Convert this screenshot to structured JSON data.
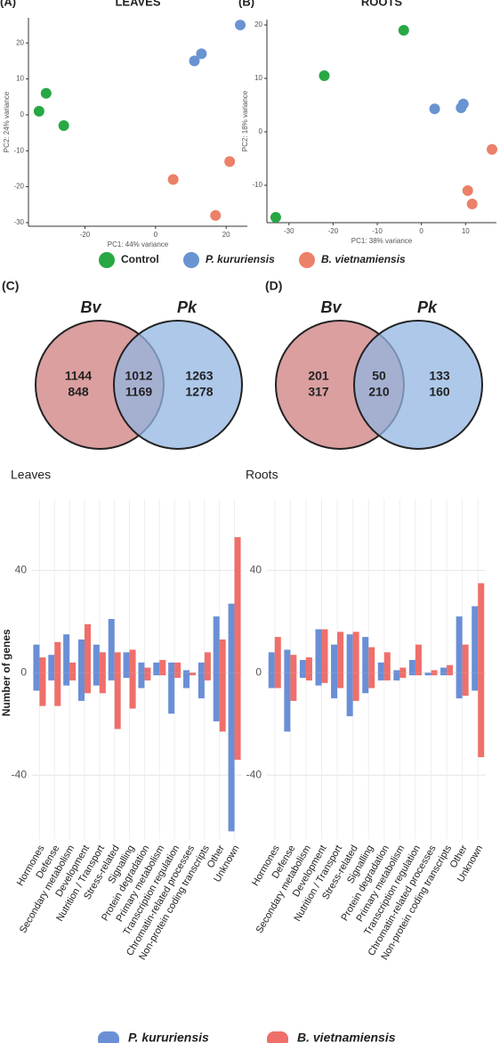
{
  "chart_data": [
    {
      "type": "scatter",
      "label": "(A)",
      "title": "LEAVES",
      "x_label": "PC1: 44% variance",
      "y_label": "PC2: 24% variance",
      "xlim": [
        -36,
        26
      ],
      "ylim": [
        -31,
        27
      ],
      "xticks": [
        -20,
        0,
        20
      ],
      "yticks": [
        -30,
        -20,
        -10,
        0,
        10,
        20
      ],
      "grid": false,
      "series": [
        {
          "name": "Control",
          "color": "#27a844",
          "x": [
            -33,
            -31,
            -26
          ],
          "y": [
            1,
            6,
            -3
          ]
        },
        {
          "name": "P. kururiensis",
          "color": "#6a93d2",
          "x": [
            11,
            13,
            24
          ],
          "y": [
            15,
            17,
            25
          ]
        },
        {
          "name": "B. vietnamiensis",
          "color": "#ec8068",
          "x": [
            5,
            17,
            21
          ],
          "y": [
            -18,
            -28,
            -13
          ]
        }
      ]
    },
    {
      "type": "scatter",
      "label": "(B)",
      "title": "ROOTS",
      "x_label": "PC1: 38% variance",
      "y_label": "PC2: 18% variance",
      "xlim": [
        -35,
        17
      ],
      "ylim": [
        -17,
        21
      ],
      "xticks": [
        -30,
        -20,
        -10,
        0,
        10
      ],
      "yticks": [
        -10,
        0,
        10,
        20
      ],
      "grid": false,
      "series": [
        {
          "name": "Control",
          "color": "#27a844",
          "x": [
            -33,
            -22,
            -4
          ],
          "y": [
            -16,
            10.5,
            19
          ]
        },
        {
          "name": "P. kururiensis",
          "color": "#6a93d2",
          "x": [
            3,
            9,
            9.5
          ],
          "y": [
            4.3,
            4.5,
            5.2
          ]
        },
        {
          "name": "B. vietnamiensis",
          "color": "#ec8068",
          "x": [
            10.5,
            11.5,
            16
          ],
          "y": [
            -11,
            -13.5,
            -3.3
          ]
        }
      ]
    },
    {
      "type": "venn",
      "label": "(C)",
      "sets": [
        {
          "name": "Bv",
          "color": "#cf7f80"
        },
        {
          "name": "Pk",
          "color": "#93b6e2"
        }
      ],
      "left_only": [
        1144,
        848
      ],
      "both": [
        1012,
        1169
      ],
      "right_only": [
        1263,
        1278
      ]
    },
    {
      "type": "venn",
      "label": "(D)",
      "sets": [
        {
          "name": "Bv",
          "color": "#cf7f80"
        },
        {
          "name": "Pk",
          "color": "#93b6e2"
        }
      ],
      "left_only": [
        201,
        317
      ],
      "both": [
        50,
        210
      ],
      "right_only": [
        133,
        160
      ]
    },
    {
      "type": "diverging_bar",
      "title": "Leaves",
      "y_label": "Number of genes",
      "ylim": [
        -65,
        68
      ],
      "yticks": [
        -40,
        0,
        40
      ],
      "grid": true,
      "categories": [
        "Hormones",
        "Defense",
        "Secondary metabolism",
        "Development",
        "Nutrition / Transport",
        "Stress-related",
        "Signalling",
        "Protein degradation",
        "Primary metabolism",
        "Transcription regulation",
        "Chromatin-related processes",
        "Non-protein coding transcripts",
        "Other",
        "Unknown"
      ],
      "series": [
        {
          "name": "P. kururiensis",
          "color": "#6a8fd6",
          "up": [
            11,
            7,
            15,
            13,
            11,
            21,
            8,
            4,
            4,
            4,
            1,
            4,
            22,
            27
          ],
          "down": [
            -7,
            -3,
            -5,
            -11,
            -5,
            -3,
            -2,
            -6,
            -1,
            -16,
            -6,
            -10,
            -19,
            -62
          ]
        },
        {
          "name": "B. vietnamiensis",
          "color": "#ef6f6a",
          "up": [
            6,
            12,
            4,
            19,
            8,
            8,
            9,
            2,
            5,
            4,
            0,
            8,
            13,
            53
          ],
          "down": [
            -13,
            -13,
            -3,
            -8,
            -8,
            -22,
            -14,
            -3,
            -1,
            -2,
            -1,
            -3,
            -23,
            -34
          ]
        }
      ]
    },
    {
      "type": "diverging_bar",
      "title": "Roots",
      "ylim": [
        -65,
        68
      ],
      "yticks": [
        -40,
        0,
        40
      ],
      "grid": true,
      "categories": [
        "Hormones",
        "Defense",
        "Secondary metabolism",
        "Development",
        "Nutrition / Transport",
        "Stress-related",
        "Signalling",
        "Protein degradation",
        "Primary metabolism",
        "Transcription regulation",
        "Chromatin-related processes",
        "Non-protein coding transcripts",
        "Other",
        "Unknown"
      ],
      "series": [
        {
          "name": "P. kururiensis",
          "color": "#6a8fd6",
          "up": [
            8,
            9,
            5,
            17,
            11,
            15,
            14,
            4,
            1,
            5,
            0,
            2,
            22,
            26
          ],
          "down": [
            -6,
            -23,
            -2,
            -5,
            -10,
            -17,
            -8,
            -3,
            -3,
            -1,
            -1,
            -1,
            -10,
            -7
          ]
        },
        {
          "name": "B. vietnamiensis",
          "color": "#ef6f6a",
          "up": [
            14,
            7,
            6,
            17,
            16,
            16,
            10,
            8,
            2,
            11,
            1,
            3,
            11,
            35
          ],
          "down": [
            -6,
            -11,
            -3,
            -4,
            -6,
            -11,
            -6,
            -3,
            -2,
            -1,
            -1,
            -1,
            -9,
            -33
          ]
        }
      ]
    }
  ]
}
